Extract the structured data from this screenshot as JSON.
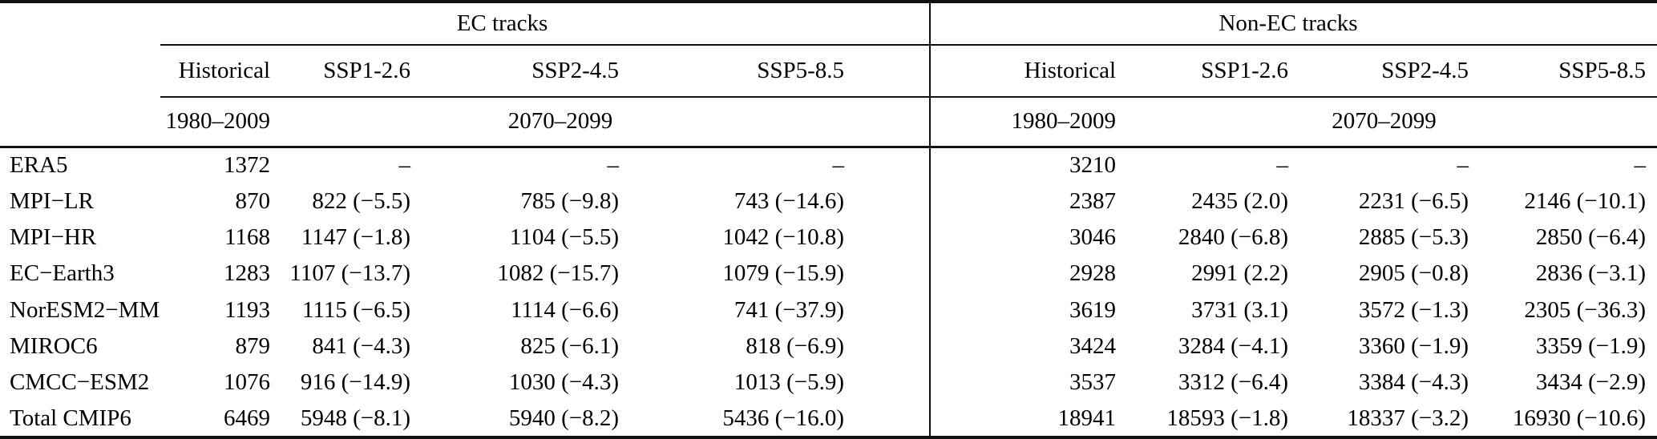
{
  "table": {
    "group_headers": {
      "ec": "EC tracks",
      "non_ec": "Non-EC tracks"
    },
    "scenario_headers": [
      "Historical",
      "SSP1-2.6",
      "SSP2-4.5",
      "SSP5-8.5",
      "Historical",
      "SSP1-2.6",
      "SSP2-4.5",
      "SSP5-8.5"
    ],
    "period_headers": [
      "1980–2009",
      "2070–2099",
      "1980–2009",
      "2070–2099"
    ],
    "rows": [
      {
        "label": "ERA5",
        "values": [
          "1372",
          "–",
          "–",
          "–",
          "3210",
          "–",
          "–",
          "–"
        ]
      },
      {
        "label": "MPI−LR",
        "values": [
          "870",
          "822 (−5.5)",
          "785 (−9.8)",
          "743 (−14.6)",
          "2387",
          "2435 (2.0)",
          "2231 (−6.5)",
          "2146 (−10.1)"
        ]
      },
      {
        "label": "MPI−HR",
        "values": [
          "1168",
          "1147 (−1.8)",
          "1104 (−5.5)",
          "1042 (−10.8)",
          "3046",
          "2840 (−6.8)",
          "2885 (−5.3)",
          "2850 (−6.4)"
        ]
      },
      {
        "label": "EC−Earth3",
        "values": [
          "1283",
          "1107 (−13.7)",
          "1082 (−15.7)",
          "1079 (−15.9)",
          "2928",
          "2991 (2.2)",
          "2905 (−0.8)",
          "2836 (−3.1)"
        ]
      },
      {
        "label": "NorESM2−MM",
        "values": [
          "1193",
          "1115 (−6.5)",
          "1114 (−6.6)",
          "741 (−37.9)",
          "3619",
          "3731 (3.1)",
          "3572 (−1.3)",
          "2305 (−36.3)"
        ]
      },
      {
        "label": "MIROC6",
        "values": [
          "879",
          "841 (−4.3)",
          "825 (−6.1)",
          "818 (−6.9)",
          "3424",
          "3284 (−4.1)",
          "3360 (−1.9)",
          "3359 (−1.9)"
        ]
      },
      {
        "label": "CMCC−ESM2",
        "values": [
          "1076",
          "916 (−14.9)",
          "1030 (−4.3)",
          "1013 (−5.9)",
          "3537",
          "3312 (−6.4)",
          "3384 (−4.3)",
          "3434 (−2.9)"
        ]
      },
      {
        "label": "Total CMIP6",
        "values": [
          "6469",
          "5948 (−8.1)",
          "5940 (−8.2)",
          "5436 (−16.0)",
          "18941",
          "18593 (−1.8)",
          "18337 (−3.2)",
          "16930 (−10.6)"
        ]
      }
    ]
  },
  "colors": {
    "text": "#000000",
    "rule": "#111111",
    "background": "#ffffff"
  }
}
